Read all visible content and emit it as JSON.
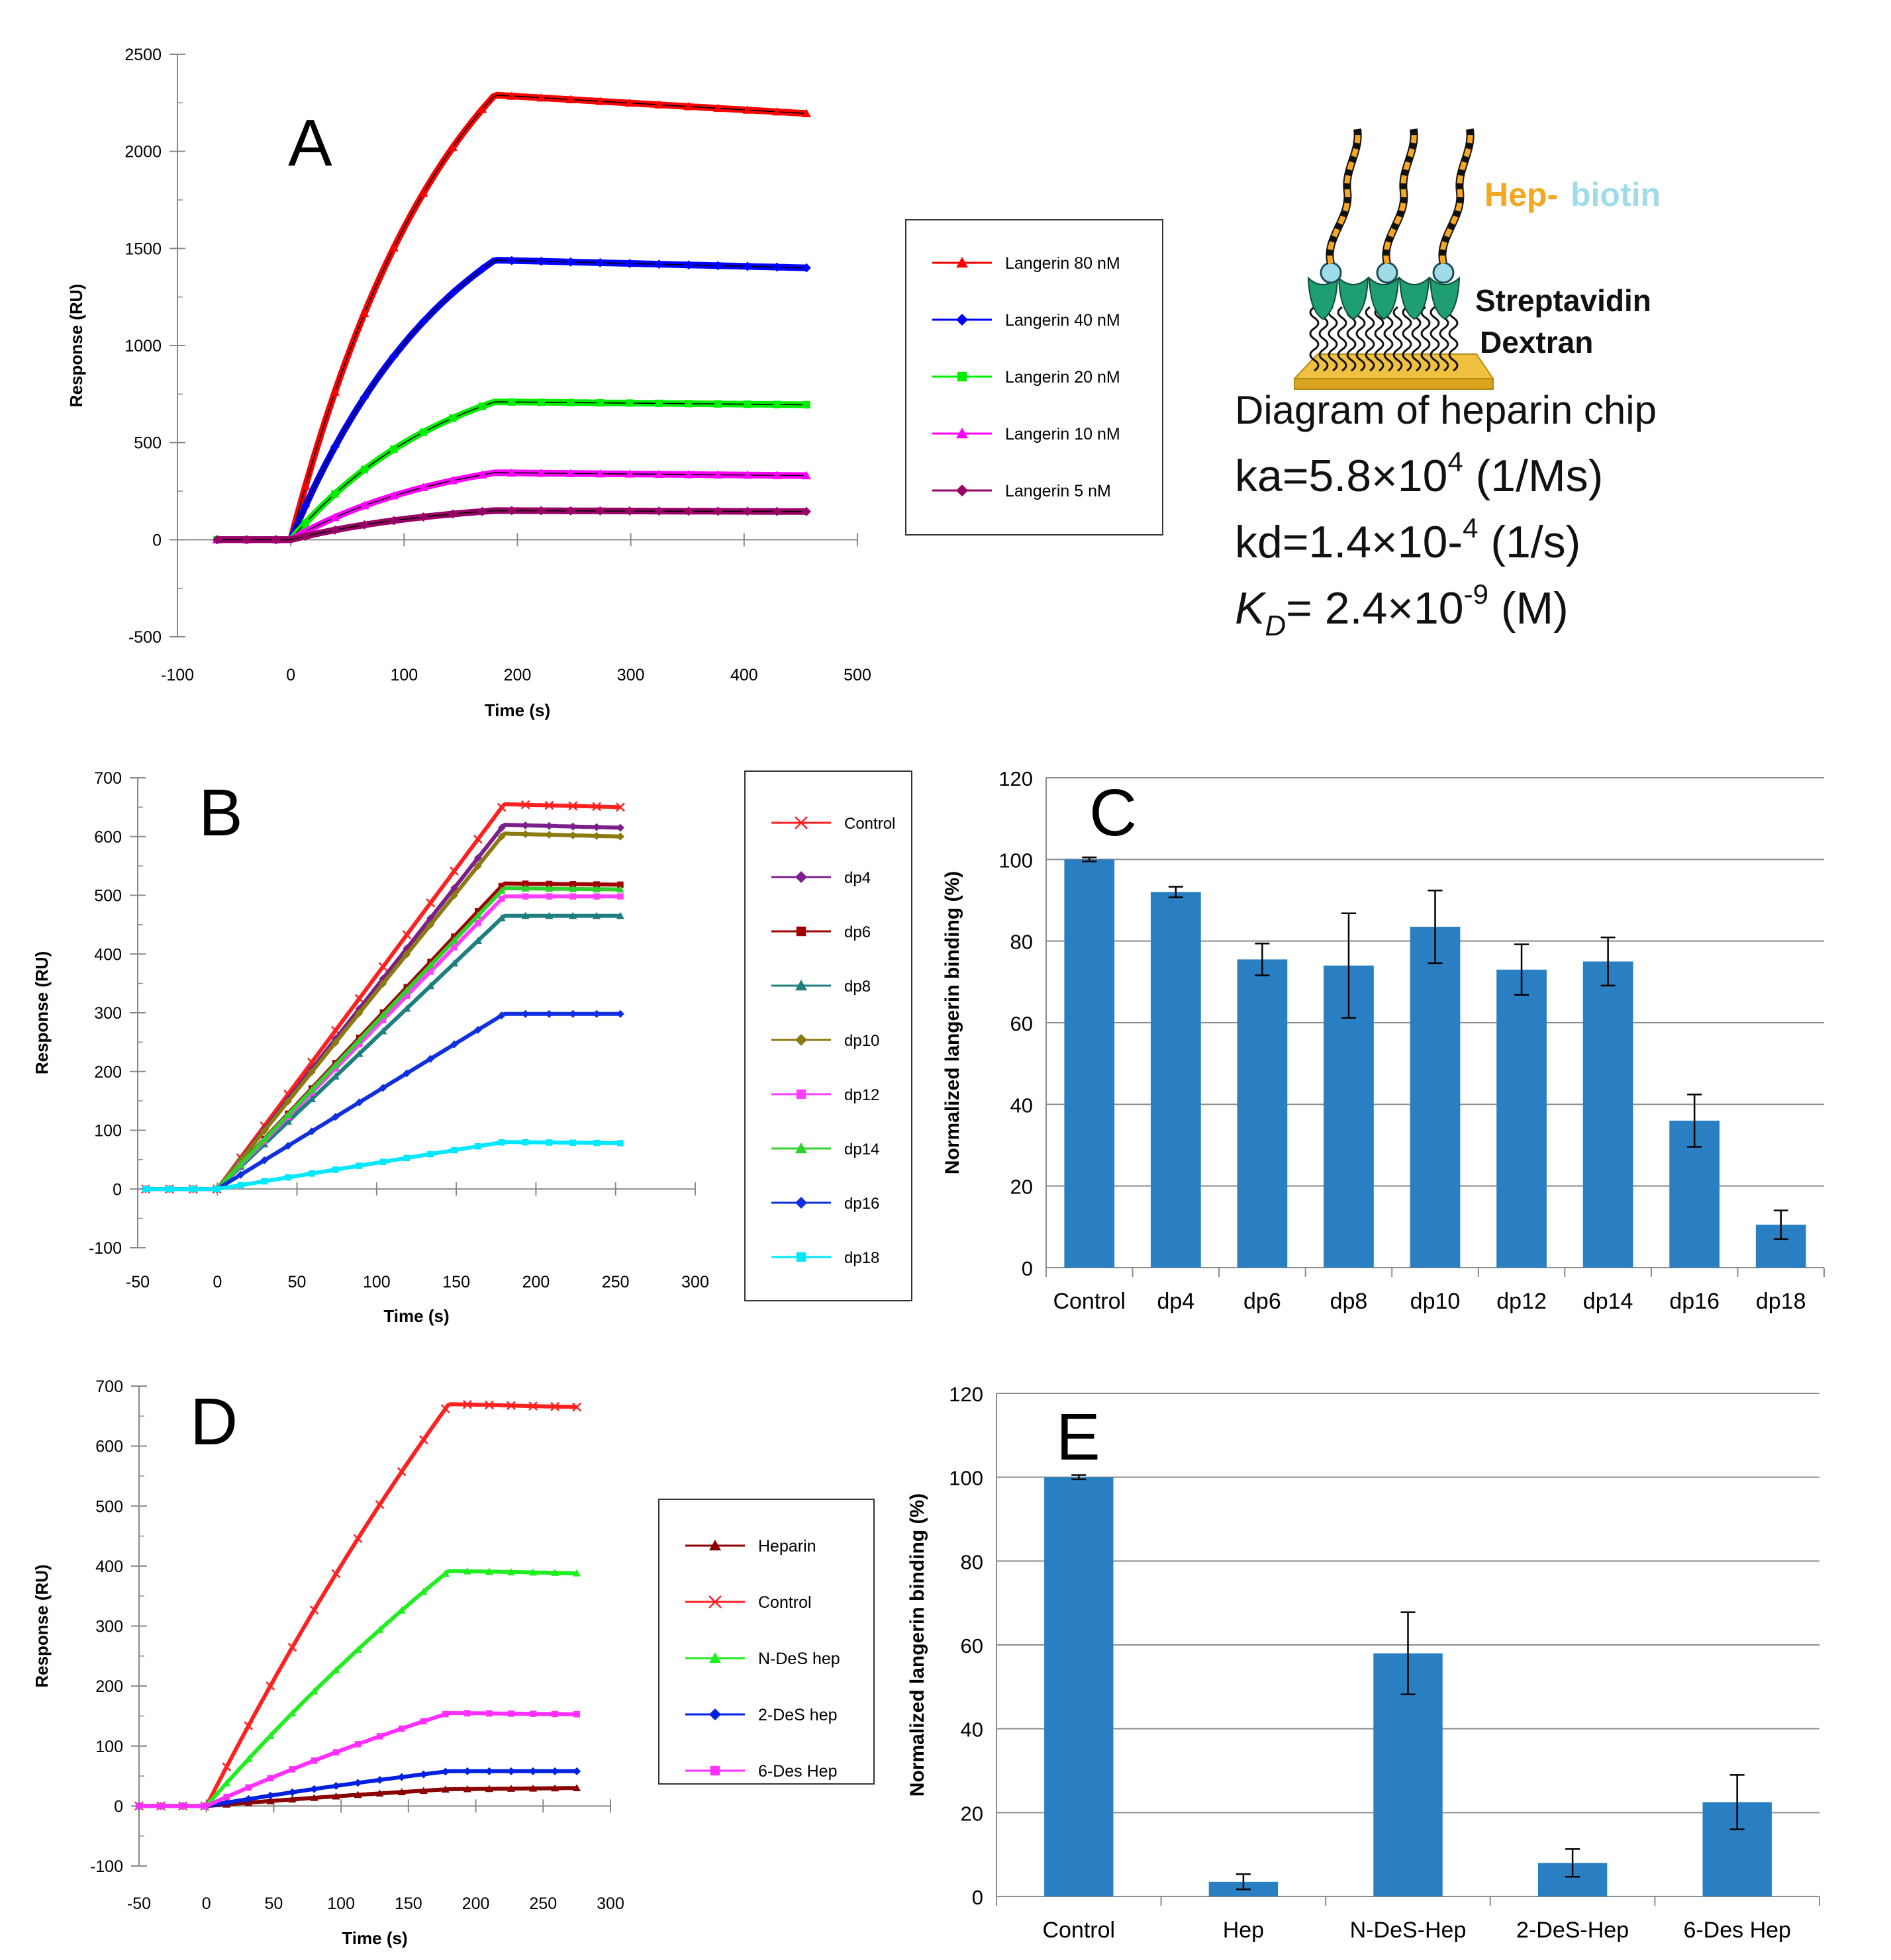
{
  "chart_data": [
    {
      "id": "A",
      "type": "line",
      "panel_label": "A",
      "xlabel": "Time (s)",
      "ylabel": "Response (RU)",
      "xlim": [
        -100,
        500
      ],
      "ylim": [
        -500,
        2500
      ],
      "xticks": [
        -100,
        0,
        100,
        200,
        300,
        400,
        500
      ],
      "yticks": [
        -500,
        0,
        500,
        1000,
        1500,
        2000,
        2500
      ],
      "series": [
        {
          "name": "Langerin 80 nM",
          "color": "#ff0000",
          "marker": "triangle",
          "plateau": 2290,
          "end": 2195
        },
        {
          "name": "Langerin 40 nM",
          "color": "#0000ff",
          "marker": "diamond",
          "plateau": 1440,
          "end": 1400
        },
        {
          "name": "Langerin 20 nM",
          "color": "#00ee00",
          "marker": "square",
          "plateau": 710,
          "end": 695
        },
        {
          "name": "Langerin 10 nM",
          "color": "#ff00ff",
          "marker": "triangle",
          "plateau": 345,
          "end": 330
        },
        {
          "name": "Langerin 5 nM",
          "color": "#990066",
          "marker": "diamond",
          "plateau": 150,
          "end": 145
        }
      ]
    },
    {
      "id": "B",
      "type": "line",
      "panel_label": "B",
      "xlabel": "Time (s)",
      "ylabel": "Response (RU)",
      "xlim": [
        -50,
        300
      ],
      "ylim": [
        -100,
        700
      ],
      "xticks": [
        -50,
        0,
        50,
        100,
        150,
        200,
        250,
        300
      ],
      "yticks": [
        -100,
        0,
        100,
        200,
        300,
        400,
        500,
        600,
        700
      ],
      "series": [
        {
          "name": "Control",
          "color": "#ff2020",
          "marker": "x",
          "plateau": 655,
          "end": 650
        },
        {
          "name": "dp4",
          "color": "#7a1f8c",
          "marker": "diamond",
          "plateau": 620,
          "end": 615
        },
        {
          "name": "dp6",
          "color": "#a00000",
          "marker": "square",
          "plateau": 520,
          "end": 518
        },
        {
          "name": "dp8",
          "color": "#1f7f7f",
          "marker": "triangle",
          "plateau": 465,
          "end": 465
        },
        {
          "name": "dp10",
          "color": "#8a7a10",
          "marker": "diamond",
          "plateau": 605,
          "end": 600
        },
        {
          "name": "dp12",
          "color": "#ff40ff",
          "marker": "square",
          "plateau": 498,
          "end": 498
        },
        {
          "name": "dp14",
          "color": "#30d030",
          "marker": "triangle",
          "plateau": 512,
          "end": 510
        },
        {
          "name": "dp16",
          "color": "#1030e0",
          "marker": "diamond",
          "plateau": 298,
          "end": 298
        },
        {
          "name": "dp18",
          "color": "#00e8ff",
          "marker": "square",
          "plateau": 80,
          "end": 78
        }
      ]
    },
    {
      "id": "C",
      "type": "bar",
      "panel_label": "C",
      "ylabel": "Normalized langerin binding (%)",
      "ylim": [
        0,
        120
      ],
      "yticks": [
        0,
        20,
        40,
        60,
        80,
        100,
        120
      ],
      "categories": [
        "Control",
        "dp4",
        "dp6",
        "dp8",
        "dp10",
        "dp12",
        "dp14",
        "dp16",
        "dp18"
      ],
      "values": [
        100,
        92,
        75.5,
        74,
        83.5,
        73,
        75,
        36,
        10.5
      ],
      "errors": [
        0.5,
        1.3,
        3.9,
        12.8,
        8.9,
        6.2,
        5.9,
        6.4,
        3.5
      ],
      "color": "#2a7fc3"
    },
    {
      "id": "D",
      "type": "line",
      "panel_label": "D",
      "xlabel": "Time (s)",
      "ylabel": "Response (RU)",
      "xlim": [
        -50,
        300
      ],
      "ylim": [
        -100,
        700
      ],
      "xticks": [
        -50,
        0,
        50,
        100,
        150,
        200,
        250,
        300
      ],
      "yticks": [
        -100,
        0,
        100,
        200,
        300,
        400,
        500,
        600,
        700
      ],
      "series": [
        {
          "name": "Heparin",
          "color": "#8b0000",
          "marker": "triangle",
          "plateau": 28,
          "end": 30
        },
        {
          "name": "Control",
          "color": "#ff2020",
          "marker": "x",
          "plateau": 670,
          "end": 665
        },
        {
          "name": "N-DeS hep",
          "color": "#20ee20",
          "marker": "triangle",
          "plateau": 392,
          "end": 388
        },
        {
          "name": "2-DeS hep",
          "color": "#0020e0",
          "marker": "diamond",
          "plateau": 58,
          "end": 58
        },
        {
          "name": "6-Des Hep",
          "color": "#ff30ff",
          "marker": "square",
          "plateau": 155,
          "end": 153
        }
      ]
    },
    {
      "id": "E",
      "type": "bar",
      "panel_label": "E",
      "ylabel": "Normalized langerin binding (%)",
      "ylim": [
        0,
        120
      ],
      "yticks": [
        0,
        20,
        40,
        60,
        80,
        100,
        120
      ],
      "categories": [
        "Control",
        "Hep",
        "N-DeS-Hep",
        "2-DeS-Hep",
        "6-Des Hep"
      ],
      "values": [
        100,
        3.5,
        58,
        8,
        22.5
      ],
      "errors": [
        0.5,
        1.8,
        9.8,
        3.3,
        6.5
      ],
      "color": "#2a7fc3"
    }
  ],
  "diagram": {
    "hep_label": "Hep-",
    "biotin_label": "biotin",
    "streptavidin_label": "Streptavidin",
    "dextran_label": "Dextran",
    "caption": "Diagram of heparin chip",
    "ka": {
      "prefix": "ka=5.8×10",
      "exp": "4",
      "unit": " (1/Ms)"
    },
    "kd": {
      "prefix": "kd=1.4×10-",
      "exp": "4",
      "unit": " (1/s)"
    },
    "KD": {
      "k": "K",
      "sub": "D",
      "mid": "= 2.4×10",
      "exp": "-9",
      "unit": " (M)"
    }
  }
}
